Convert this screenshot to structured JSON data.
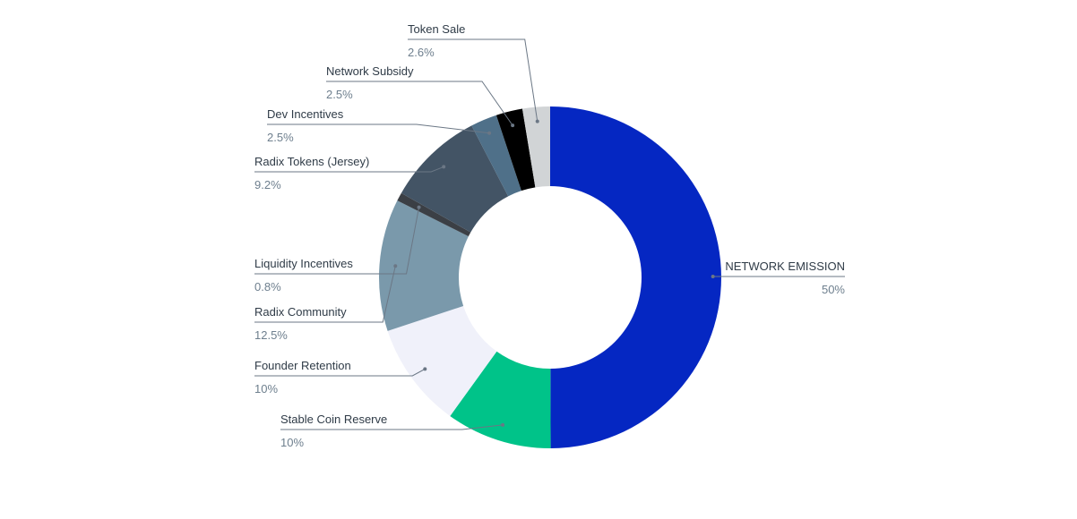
{
  "chart_data": {
    "type": "pie",
    "variant": "donut",
    "title": "",
    "slices": [
      {
        "label": "NETWORK EMISSION",
        "value_label": "50%",
        "value": 50,
        "color": "#0527c2"
      },
      {
        "label": "Stable Coin Reserve",
        "value_label": "10%",
        "value": 10,
        "color": "#00c389"
      },
      {
        "label": "Founder Retention",
        "value_label": "10%",
        "value": 10,
        "color": "#f0f1fa"
      },
      {
        "label": "Radix Community",
        "value_label": "12.5%",
        "value": 12.5,
        "color": "#7a99ab"
      },
      {
        "label": "Liquidity Incentives",
        "value_label": "0.8%",
        "value": 0.8,
        "color": "#3b3f45"
      },
      {
        "label": "Radix Tokens (Jersey)",
        "value_label": "9.2%",
        "value": 9.2,
        "color": "#435465"
      },
      {
        "label": "Dev Incentives",
        "value_label": "2.5%",
        "value": 2.5,
        "color": "#4f7089"
      },
      {
        "label": "Network Subsidy",
        "value_label": "2.5%",
        "value": 2.5,
        "color": "#000000"
      },
      {
        "label": "Token Sale",
        "value_label": "2.6%",
        "value": 2.6,
        "color": "#d1d4d6"
      }
    ]
  }
}
